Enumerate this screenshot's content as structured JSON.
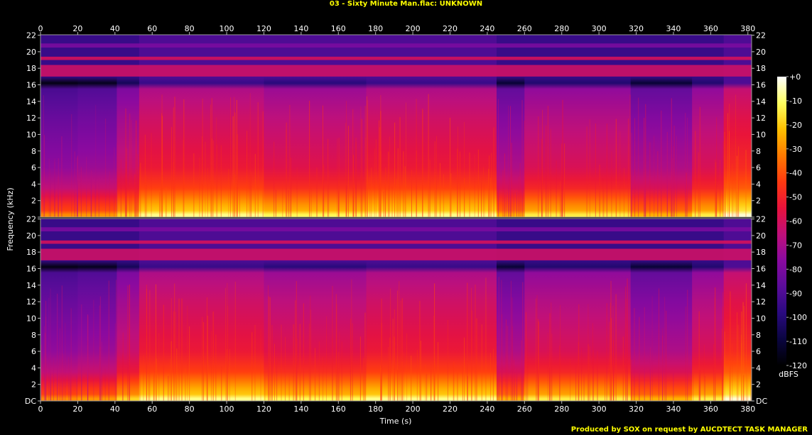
{
  "title": "03 - Sixty Minute Man.flac: UNKNOWN",
  "credit": "Produced by SOX on request by AUCDTECT TASK MANAGER",
  "chart_data": {
    "type": "heatmap",
    "title": "03 - Sixty Minute Man.flac: UNKNOWN",
    "xlabel": "Time (s)",
    "ylabel": "Frequency (kHz)",
    "xlim": [
      0,
      382
    ],
    "ylim": [
      0,
      22.05
    ],
    "x_ticks": [
      0,
      20,
      40,
      60,
      80,
      100,
      120,
      140,
      160,
      180,
      200,
      220,
      240,
      260,
      280,
      300,
      320,
      340,
      360,
      380
    ],
    "y_ticks": [
      "DC",
      "2",
      "4",
      "6",
      "8",
      "10",
      "12",
      "14",
      "16",
      "18",
      "20",
      "22"
    ],
    "channels": 2,
    "colorbar": {
      "label": "dBFS",
      "ticks": [
        "+0",
        "-10",
        "-20",
        "-30",
        "-40",
        "-50",
        "-60",
        "-70",
        "-80",
        "-90",
        "-100",
        "-110",
        "-120"
      ],
      "range": [
        -120,
        0
      ],
      "colors": [
        "#000000",
        "#0a0540",
        "#2a0a80",
        "#5a0c9a",
        "#8a0aa0",
        "#c0107a",
        "#e8123c",
        "#ff3a10",
        "#ff7a00",
        "#ffc000",
        "#ffff60",
        "#ffffff"
      ]
    },
    "bands": [
      {
        "from_khz": 19.0,
        "to_khz": 19.4,
        "level_db": -60
      },
      {
        "from_khz": 17.0,
        "to_khz": 18.4,
        "level_db": -62
      },
      {
        "from_khz": 20.5,
        "to_khz": 21.0,
        "level_db": -80
      }
    ],
    "segments": [
      {
        "t0": 0,
        "t1": 20,
        "level_db": -82
      },
      {
        "t0": 20,
        "t1": 41,
        "level_db": -80
      },
      {
        "t0": 41,
        "t1": 53,
        "level_db": -70
      },
      {
        "t0": 53,
        "t1": 120,
        "level_db": -60
      },
      {
        "t0": 120,
        "t1": 175,
        "level_db": -64
      },
      {
        "t0": 175,
        "t1": 245,
        "level_db": -60
      },
      {
        "t0": 245,
        "t1": 260,
        "level_db": -76
      },
      {
        "t0": 260,
        "t1": 317,
        "level_db": -66
      },
      {
        "t0": 317,
        "t1": 350,
        "level_db": -76
      },
      {
        "t0": 350,
        "t1": 367,
        "level_db": -66
      },
      {
        "t0": 367,
        "t1": 382,
        "level_db": -55
      }
    ],
    "grid": false
  }
}
